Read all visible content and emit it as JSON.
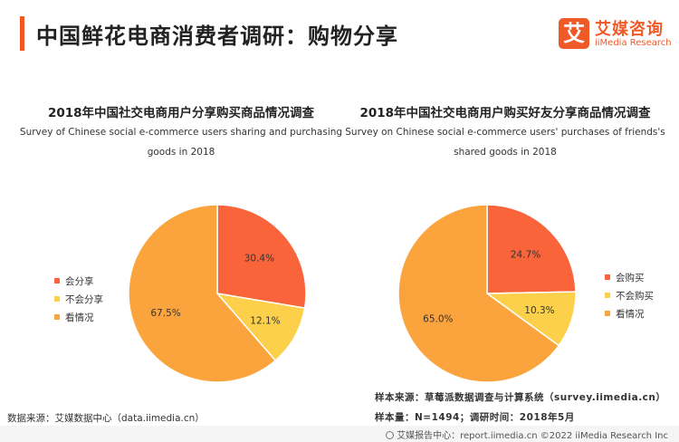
{
  "header": {
    "title": "中国鲜花电商消费者调研：购物分享"
  },
  "logo": {
    "mark": "艾",
    "name": "艾媒咨询",
    "name_en": "iiMedia Research"
  },
  "colors": {
    "orange_red": "#f9643a",
    "yellow": "#fcd04a",
    "orange": "#fba43e",
    "accent": "#f4561f"
  },
  "chart_data": [
    {
      "type": "pie",
      "title": "2018年中国社交电商用户分享购买商品情况调查",
      "subtitle_lines": [
        "Survey of Chinese social e-commerce users sharing and purchasing",
        "goods in 2018"
      ],
      "legend_position": "left",
      "slices": [
        {
          "label": "会分享",
          "value": 30.4,
          "display": "30.4%",
          "color": "#f9643a"
        },
        {
          "label": "不会分享",
          "value": 12.1,
          "display": "12.1%",
          "color": "#fcd04a"
        },
        {
          "label": "看情况",
          "value": 67.5,
          "display": "67.5%",
          "color": "#fba43e"
        }
      ]
    },
    {
      "type": "pie",
      "title": "2018年中国社交电商用户购买好友分享商品情况调查",
      "subtitle_lines": [
        "Survey on Chinese social e-commerce users' purchases of friends's",
        "shared goods in 2018"
      ],
      "legend_position": "right",
      "slices": [
        {
          "label": "会购买",
          "value": 24.7,
          "display": "24.7%",
          "color": "#f9643a"
        },
        {
          "label": "不会购买",
          "value": 10.3,
          "display": "10.3%",
          "color": "#fcd04a"
        },
        {
          "label": "看情况",
          "value": 65.0,
          "display": "65.0%",
          "color": "#fba43e"
        }
      ]
    }
  ],
  "source": {
    "text": "数据来源：艾媒数据中心（data.iimedia.cn）"
  },
  "notes": {
    "sample_source": "样本来源：草莓派数据调查与计算系统（survey.iimedia.cn）",
    "sample_size": "样本量：N=1494；调研时间：2018年5月"
  },
  "footer": {
    "text": "艾媒报告中心：report.iimedia.cn   ©2022 iiMedia Research Inc"
  }
}
